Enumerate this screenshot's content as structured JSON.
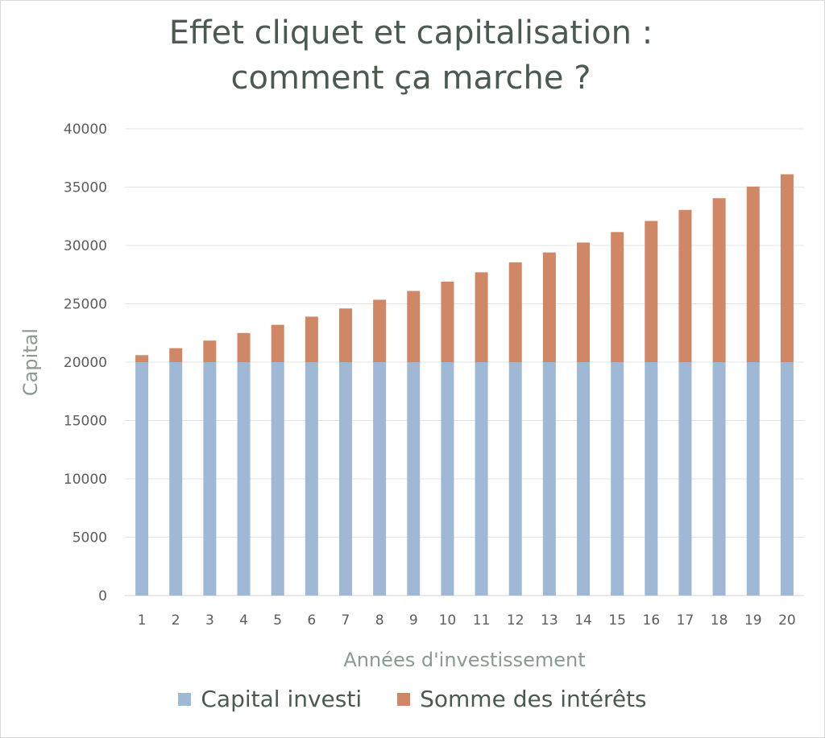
{
  "chart_data": {
    "type": "bar",
    "stacked": true,
    "title_lines": [
      "Effet cliquet et capitalisation :",
      "comment ça marche ?"
    ],
    "xlabel": "Années d'investissement",
    "ylabel": "Capital",
    "ylim": [
      0,
      40000
    ],
    "yticks": [
      0,
      5000,
      10000,
      15000,
      20000,
      25000,
      30000,
      35000,
      40000
    ],
    "grid": true,
    "legend_position": "bottom",
    "categories": [
      "1",
      "2",
      "3",
      "4",
      "5",
      "6",
      "7",
      "8",
      "9",
      "10",
      "11",
      "12",
      "13",
      "14",
      "15",
      "16",
      "17",
      "18",
      "19",
      "20"
    ],
    "series": [
      {
        "name": "Capital investi",
        "color": "#9fb8d6",
        "values": [
          20000,
          20000,
          20000,
          20000,
          20000,
          20000,
          20000,
          20000,
          20000,
          20000,
          20000,
          20000,
          20000,
          20000,
          20000,
          20000,
          20000,
          20000,
          20000,
          20000
        ]
      },
      {
        "name": "Somme des intérêts",
        "color": "#cf8765",
        "values": [
          600,
          1200,
          1850,
          2500,
          3200,
          3900,
          4600,
          5350,
          6100,
          6900,
          7700,
          8550,
          9400,
          10250,
          11150,
          12100,
          13050,
          14050,
          15050,
          16100
        ]
      }
    ]
  }
}
